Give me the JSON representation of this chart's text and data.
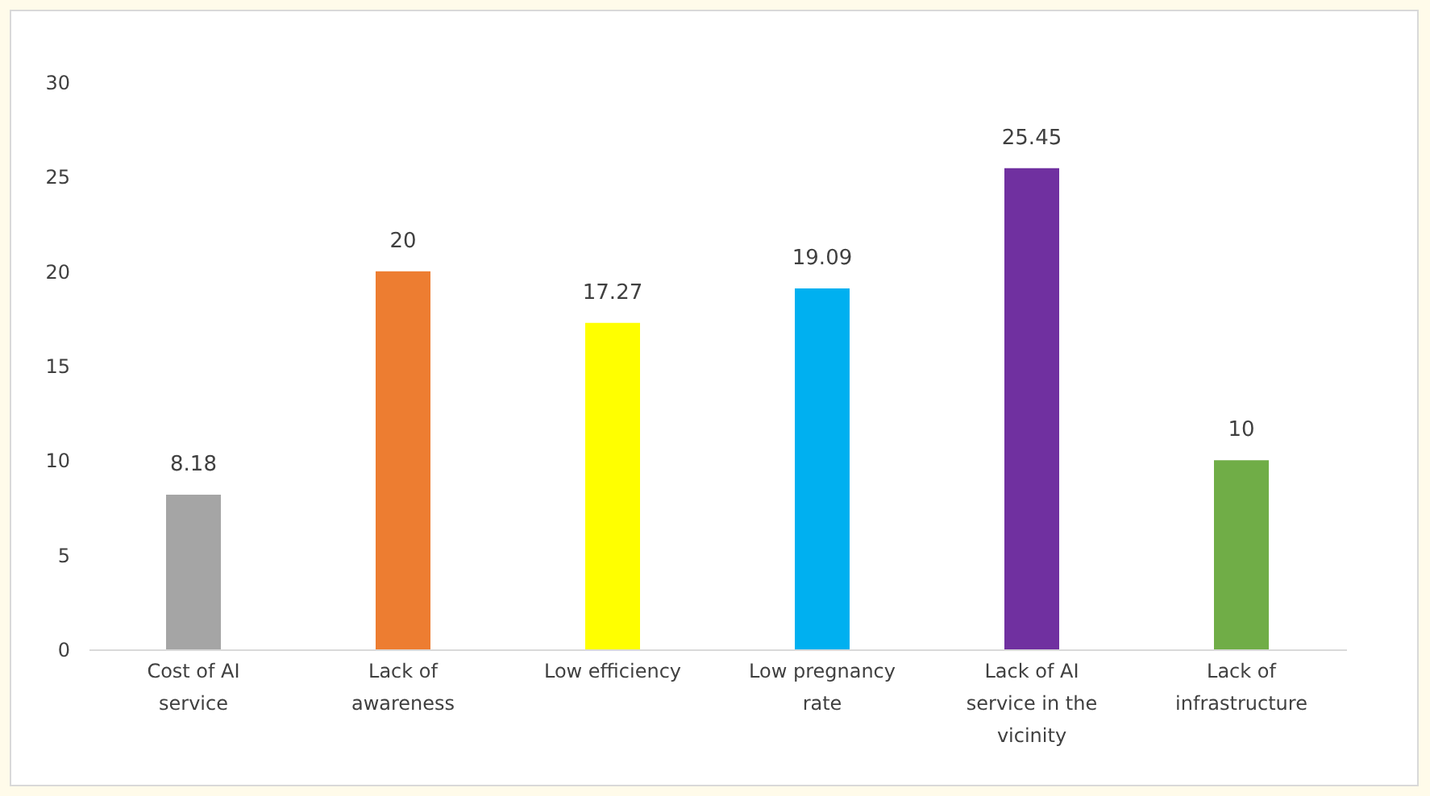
{
  "chart_data": {
    "type": "bar",
    "categories": [
      "Cost of AI service",
      "Lack of awareness",
      "Low efficiency",
      "Low pregnancy rate",
      "Lack of AI service in the vicinity",
      "Lack of infrastructure"
    ],
    "values": [
      8.18,
      20,
      17.27,
      19.09,
      25.45,
      10
    ],
    "colors": [
      "#a5a5a5",
      "#ed7d31",
      "#ffff00",
      "#00b0f0",
      "#7030a0",
      "#70ad47"
    ],
    "ylim": [
      0,
      30
    ],
    "yticks": [
      0,
      5,
      10,
      15,
      20,
      25,
      30
    ],
    "data_labels": true
  }
}
